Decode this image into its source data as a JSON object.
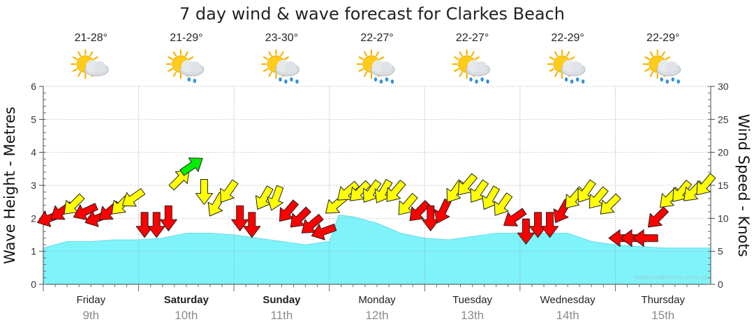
{
  "chart_data": {
    "type": "area",
    "title": "7 day wind & wave forecast for Clarkes Beach",
    "ylabel_left": "Wave Height - Metres",
    "ylabel_right": "Wind Speed - Knots",
    "ylim_left": [
      0,
      6
    ],
    "ylim_right": [
      0,
      30
    ],
    "yticks_left": [
      "0",
      "1",
      "2",
      "3",
      "4",
      "5",
      "6"
    ],
    "yticks_right": [
      "0",
      "5",
      "10",
      "15",
      "20",
      "25",
      "30"
    ],
    "grid": true,
    "days": [
      {
        "name": "Friday",
        "date": "9th",
        "temp": "21-28°",
        "weather": "partly-cloudy-icon",
        "bold": false
      },
      {
        "name": "Saturday",
        "date": "10th",
        "temp": "21-29°",
        "weather": "light-rain-icon",
        "bold": true
      },
      {
        "name": "Sunday",
        "date": "11th",
        "temp": "23-30°",
        "weather": "showers-icon",
        "bold": true
      },
      {
        "name": "Monday",
        "date": "12th",
        "temp": "22-27°",
        "weather": "showers-icon",
        "bold": false
      },
      {
        "name": "Tuesday",
        "date": "13th",
        "temp": "22-27°",
        "weather": "showers-icon",
        "bold": false
      },
      {
        "name": "Wednesday",
        "date": "14th",
        "temp": "22-29°",
        "weather": "showers-icon",
        "bold": false
      },
      {
        "name": "Thursday",
        "date": "15th",
        "temp": "22-29°",
        "weather": "showers-icon",
        "bold": false
      }
    ],
    "wave_series": {
      "name": "Wave Height",
      "x_days": [
        0,
        0.25,
        0.5,
        0.75,
        1.0,
        1.25,
        1.5,
        1.75,
        2.0,
        2.25,
        2.5,
        2.75,
        3.0,
        3.1,
        3.25,
        3.5,
        3.75,
        4.0,
        4.25,
        4.5,
        4.75,
        5.0,
        5.25,
        5.5,
        5.75,
        6.0,
        6.25,
        6.5,
        6.75,
        7.0
      ],
      "values": [
        1.1,
        1.3,
        1.3,
        1.35,
        1.35,
        1.4,
        1.55,
        1.55,
        1.5,
        1.4,
        1.3,
        1.2,
        1.3,
        2.1,
        2.05,
        1.85,
        1.55,
        1.4,
        1.35,
        1.45,
        1.55,
        1.55,
        1.55,
        1.55,
        1.3,
        1.2,
        1.15,
        1.1,
        1.1,
        1.1
      ],
      "color": "#7ff3fa"
    },
    "wind_series": {
      "name": "Wind Speed",
      "x_days": [
        0.0,
        0.125,
        0.25,
        0.375,
        0.5,
        0.625,
        0.75,
        0.875,
        1.0,
        1.125,
        1.25,
        1.375,
        1.5,
        1.625,
        1.75,
        1.875,
        2.0,
        2.125,
        2.25,
        2.375,
        2.5,
        2.625,
        2.75,
        2.875,
        3.0,
        3.125,
        3.25,
        3.375,
        3.5,
        3.625,
        3.75,
        3.875,
        4.0,
        4.125,
        4.25,
        4.375,
        4.5,
        4.625,
        4.75,
        4.875,
        5.0,
        5.125,
        5.25,
        5.375,
        5.5,
        5.625,
        5.75,
        5.875,
        6.0,
        6.125,
        6.25,
        6.375,
        6.5,
        6.625,
        6.75,
        6.875
      ],
      "knots": [
        10,
        11,
        12,
        11,
        10,
        11,
        12,
        13,
        9,
        9,
        10,
        16,
        18,
        14,
        12,
        14,
        10,
        9,
        13,
        13,
        11,
        10,
        9,
        8,
        12,
        14,
        14,
        14,
        14,
        14,
        12,
        11,
        10,
        11,
        14,
        15,
        14,
        13,
        12,
        10,
        8,
        9,
        9,
        11,
        13,
        14,
        13,
        12,
        7,
        7,
        7,
        10,
        13,
        14,
        14,
        15
      ],
      "direction_deg": [
        250,
        235,
        225,
        245,
        250,
        230,
        225,
        235,
        180,
        180,
        180,
        45,
        55,
        180,
        210,
        215,
        180,
        180,
        210,
        200,
        220,
        225,
        230,
        250,
        230,
        230,
        225,
        215,
        210,
        220,
        220,
        225,
        180,
        205,
        215,
        220,
        215,
        210,
        215,
        235,
        180,
        180,
        180,
        210,
        220,
        215,
        220,
        225,
        270,
        270,
        270,
        225,
        225,
        220,
        225,
        220
      ],
      "colors": {
        "light": "#ffff00",
        "strong": "#ff0000",
        "offshore": "#00ee00"
      }
    },
    "watermark": "www.seabreeze.com.au"
  }
}
